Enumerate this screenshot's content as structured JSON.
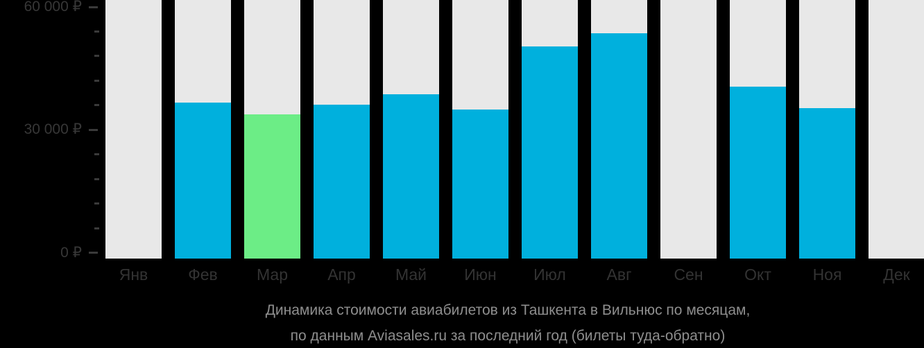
{
  "chart_data": {
    "type": "bar",
    "title": "Динамика стоимости авиабилетов из Ташкента в Вильнюс по месяцам,",
    "subtitle": "по данным Aviasales.ru за последний год (билеты туда-обратно)",
    "categories": [
      "Янв",
      "Фев",
      "Мар",
      "Апр",
      "Май",
      "Июн",
      "Июл",
      "Авг",
      "Сен",
      "Окт",
      "Ноя",
      "Дек"
    ],
    "values": [
      null,
      36600,
      33800,
      36200,
      38700,
      35000,
      50400,
      53600,
      null,
      40500,
      35300,
      null
    ],
    "highlight_index": 2,
    "highlight_meaning": "cheapest-month",
    "no_data_months": [
      "Янв",
      "Сен",
      "Дек"
    ],
    "currency": "₽",
    "ylim": [
      0,
      60000
    ],
    "yticks": [
      {
        "value": 60000,
        "label": "60 000 ₽"
      },
      {
        "value": 30000,
        "label": "30 000 ₽"
      },
      {
        "value": 0,
        "label": "0 ₽"
      }
    ],
    "minor_tick_step": 6000,
    "grid": "off",
    "legend": "none",
    "colors": {
      "background": "#000000",
      "bar_track": "#e8e8e8",
      "bar_value": "#00b0dd",
      "bar_highlight": "#6ced86",
      "axis_text": "#373737",
      "month_text": "#333333",
      "caption_text": "#8e8e8e",
      "tick_mark": "#3a3a3a"
    }
  }
}
